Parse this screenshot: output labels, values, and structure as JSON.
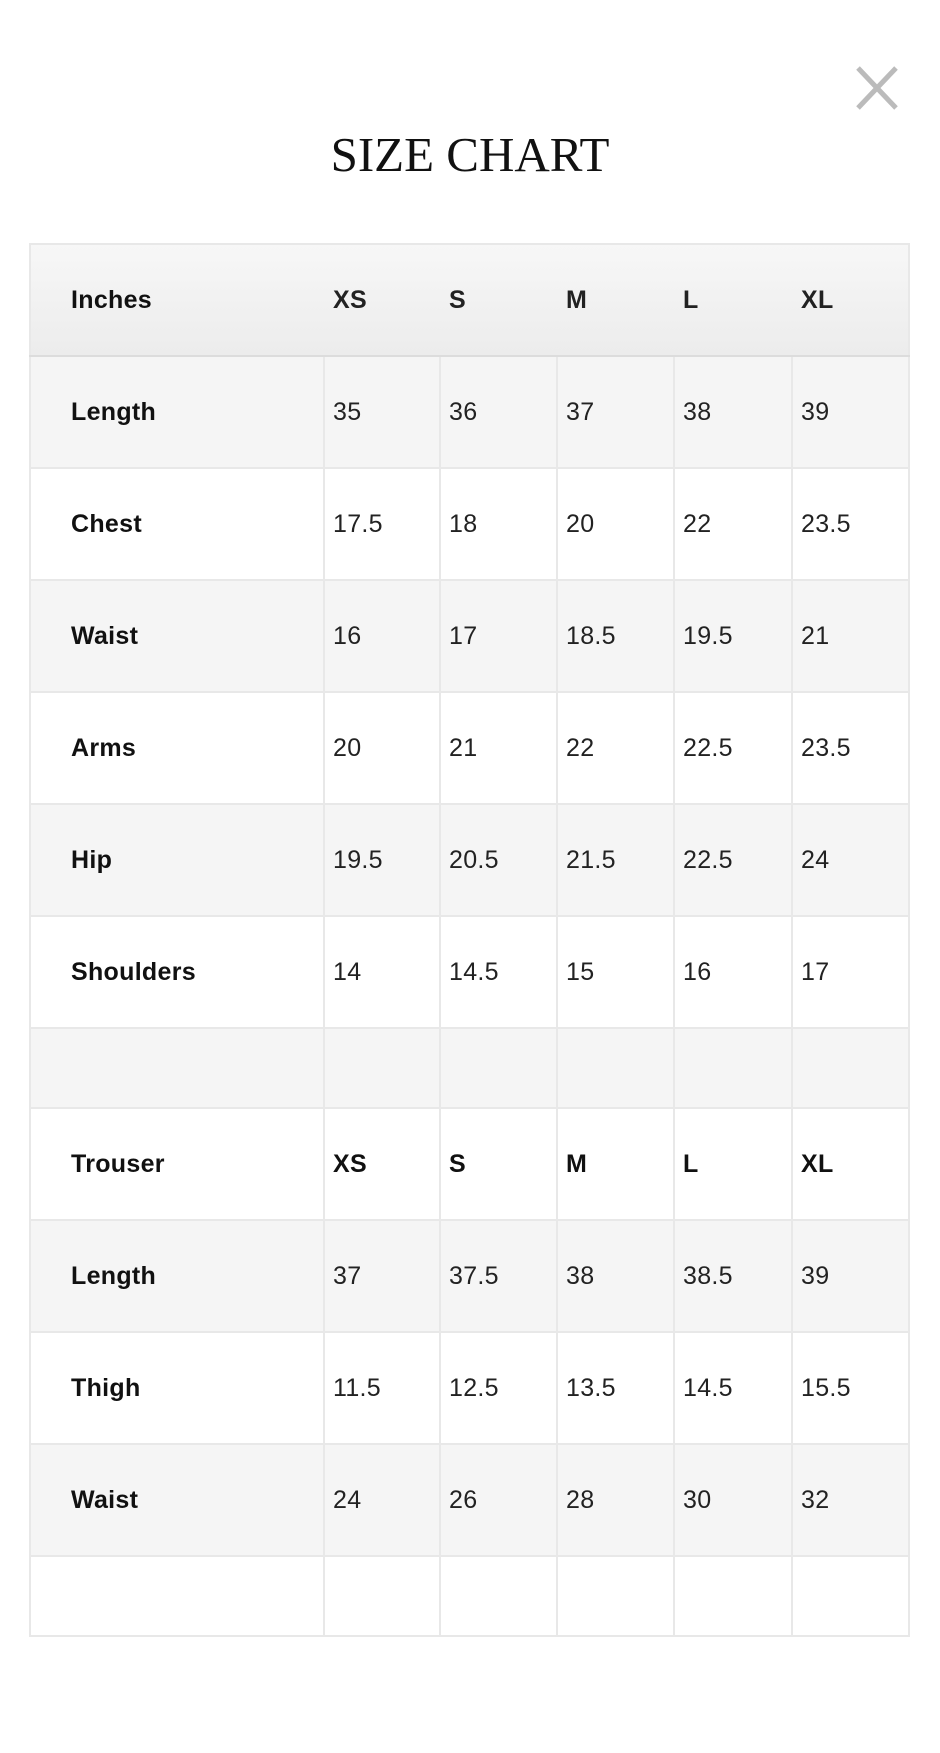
{
  "modal": {
    "title": "SIZE CHART",
    "close_icon": "close-icon",
    "close_color": "#bbbbbb"
  },
  "top_table": {
    "header": [
      "Inches",
      "XS",
      "S",
      "M",
      "L",
      "XL"
    ],
    "rows": [
      [
        "Length",
        "35",
        "36",
        "37",
        "38",
        "39"
      ],
      [
        "Chest",
        "17.5",
        "18",
        "20",
        "22",
        "23.5"
      ],
      [
        "Waist",
        "16",
        "17",
        "18.5",
        "19.5",
        "21"
      ],
      [
        "Arms",
        "20",
        "21",
        "22",
        "22.5",
        "23.5"
      ],
      [
        "Hip",
        "19.5",
        "20.5",
        "21.5",
        "22.5",
        "24"
      ],
      [
        "Shoulders",
        "14",
        "14.5",
        "15",
        "16",
        "17"
      ]
    ]
  },
  "trouser_table": {
    "header": [
      "Trouser",
      "XS",
      "S",
      "M",
      "L",
      "XL"
    ],
    "rows": [
      [
        "Length",
        "37",
        "37.5",
        "38",
        "38.5",
        "39"
      ],
      [
        "Thigh",
        "11.5",
        "12.5",
        "13.5",
        "14.5",
        "15.5"
      ],
      [
        "Waist",
        "24",
        "26",
        "28",
        "30",
        "32"
      ]
    ]
  }
}
